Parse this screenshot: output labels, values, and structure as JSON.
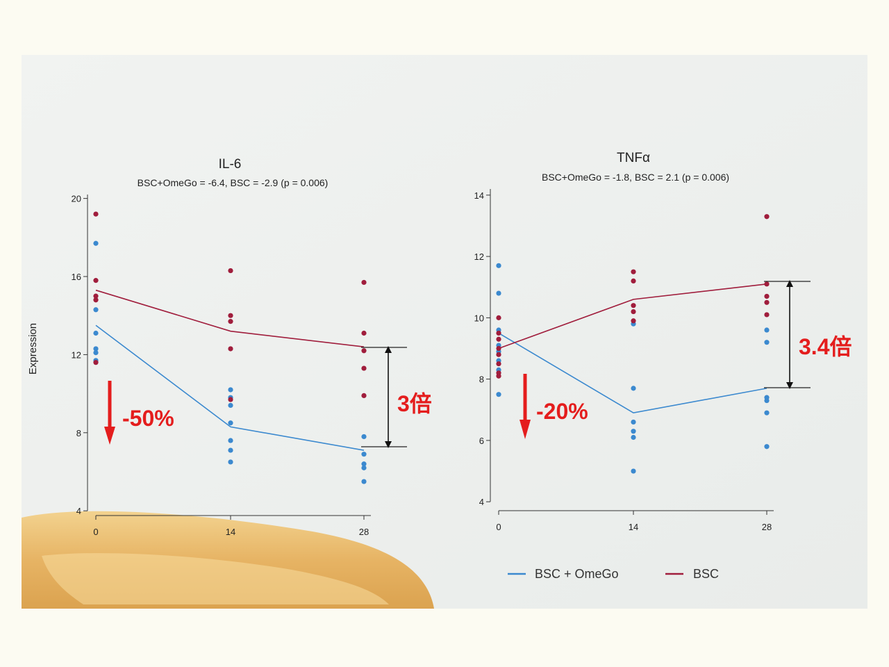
{
  "colors": {
    "omego": "#3b89cf",
    "bsc": "#a01d3c",
    "annotation": "#e41d1d",
    "panel": "#eef0ee",
    "page": "#fcfbf2"
  },
  "legend": {
    "items": [
      {
        "label": "BSC + OmeGo",
        "color": "#3b89cf"
      },
      {
        "label": "BSC",
        "color": "#a01d3c"
      }
    ]
  },
  "chart_data": [
    {
      "type": "line",
      "title": "IL-6",
      "subtitle": "BSC+OmeGo = -6.4,  BSC = -2.9 (p = 0.006)",
      "xlabel": "",
      "ylabel": "Expression",
      "x": [
        0,
        14,
        28
      ],
      "xticks": [
        "0",
        "14",
        "28"
      ],
      "yticks": [
        4,
        8,
        12,
        16,
        20
      ],
      "ylim": [
        3.9,
        20.2
      ],
      "series": [
        {
          "name": "BSC + OmeGo",
          "color": "#3b89cf",
          "line": [
            13.5,
            8.3,
            7.1
          ],
          "points": [
            [
              0,
              17.7
            ],
            [
              0,
              14.3
            ],
            [
              0,
              13.1
            ],
            [
              0,
              12.3
            ],
            [
              0,
              12.1
            ],
            [
              0,
              11.7
            ],
            [
              14,
              10.2
            ],
            [
              14,
              9.8
            ],
            [
              14,
              9.4
            ],
            [
              14,
              8.5
            ],
            [
              14,
              7.6
            ],
            [
              14,
              7.1
            ],
            [
              14,
              6.5
            ],
            [
              28,
              7.8
            ],
            [
              28,
              6.9
            ],
            [
              28,
              6.4
            ],
            [
              28,
              6.2
            ],
            [
              28,
              5.5
            ]
          ]
        },
        {
          "name": "BSC",
          "color": "#a01d3c",
          "line": [
            15.3,
            13.2,
            12.4
          ],
          "points": [
            [
              0,
              19.2
            ],
            [
              0,
              15.8
            ],
            [
              0,
              15.0
            ],
            [
              0,
              14.8
            ],
            [
              0,
              11.6
            ],
            [
              14,
              16.3
            ],
            [
              14,
              14.0
            ],
            [
              14,
              13.7
            ],
            [
              14,
              12.3
            ],
            [
              14,
              9.7
            ],
            [
              28,
              15.7
            ],
            [
              28,
              13.1
            ],
            [
              28,
              12.2
            ],
            [
              28,
              11.3
            ],
            [
              28,
              9.9
            ]
          ]
        }
      ],
      "annotations": {
        "drop": "-50%",
        "ratio": "3倍"
      }
    },
    {
      "type": "line",
      "title": "TNFα",
      "subtitle": "BSC+OmeGo = -1.8,  BSC = 2.1 (p = 0.006)",
      "xlabel": "",
      "ylabel": "",
      "x": [
        0,
        14,
        28
      ],
      "xticks": [
        "0",
        "14",
        "28"
      ],
      "yticks": [
        4,
        6,
        8,
        10,
        12,
        14
      ],
      "ylim": [
        3.8,
        14.2
      ],
      "series": [
        {
          "name": "BSC + OmeGo",
          "color": "#3b89cf",
          "line": [
            9.5,
            6.9,
            7.7
          ],
          "points": [
            [
              0,
              11.7
            ],
            [
              0,
              10.8
            ],
            [
              0,
              9.6
            ],
            [
              0,
              9.1
            ],
            [
              0,
              8.9
            ],
            [
              0,
              8.6
            ],
            [
              0,
              8.3
            ],
            [
              0,
              7.5
            ],
            [
              14,
              9.8
            ],
            [
              14,
              7.7
            ],
            [
              14,
              6.6
            ],
            [
              14,
              6.3
            ],
            [
              14,
              6.1
            ],
            [
              14,
              5.0
            ],
            [
              28,
              9.6
            ],
            [
              28,
              9.2
            ],
            [
              28,
              7.4
            ],
            [
              28,
              7.3
            ],
            [
              28,
              6.9
            ],
            [
              28,
              5.8
            ]
          ]
        },
        {
          "name": "BSC",
          "color": "#a01d3c",
          "line": [
            9.0,
            10.6,
            11.1
          ],
          "points": [
            [
              0,
              10.0
            ],
            [
              0,
              9.5
            ],
            [
              0,
              9.3
            ],
            [
              0,
              9.0
            ],
            [
              0,
              8.8
            ],
            [
              0,
              8.5
            ],
            [
              0,
              8.2
            ],
            [
              0,
              8.1
            ],
            [
              14,
              11.5
            ],
            [
              14,
              11.2
            ],
            [
              14,
              10.4
            ],
            [
              14,
              10.2
            ],
            [
              14,
              9.9
            ],
            [
              28,
              13.3
            ],
            [
              28,
              11.1
            ],
            [
              28,
              10.7
            ],
            [
              28,
              10.5
            ],
            [
              28,
              10.1
            ]
          ]
        }
      ],
      "annotations": {
        "drop": "-20%",
        "ratio": "3.4倍"
      }
    }
  ]
}
